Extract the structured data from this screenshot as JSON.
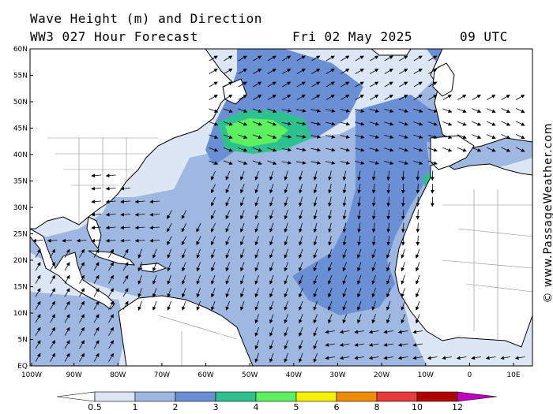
{
  "header": {
    "title": "Wave Height (m) and Direction",
    "model": "WW3 027 Hour Forecast",
    "date": "Fri 02 May 2025",
    "time": "09 UTC"
  },
  "credit": "© www.PassageWeather.com",
  "map": {
    "region": "North Atlantic",
    "lat_labels": [
      "60N",
      "55N",
      "50N",
      "45N",
      "40N",
      "35N",
      "30N",
      "25N",
      "20N",
      "15N",
      "10N",
      "5N",
      "EQ"
    ],
    "lon_labels": [
      "100W",
      "90W",
      "80W",
      "70W",
      "60W",
      "50W",
      "40W",
      "30W",
      "20W",
      "10W",
      "0",
      "10E"
    ],
    "colors": {
      "land": "#ffffff",
      "ocean_lt05": "#dce6f4",
      "wave_05_1": "#c6d6ee",
      "wave_1_2": "#9fb8e2",
      "wave_2_3": "#6b8fd4",
      "wave_3_4": "#2ec08f",
      "wave_4_5": "#5ef060",
      "coast": "#000000",
      "border": "#888888"
    }
  },
  "colorbar": {
    "labels": [
      "0.5",
      "1",
      "2",
      "3",
      "4",
      "5",
      "6",
      "8",
      "10",
      "12"
    ],
    "colors": [
      "#ffffff",
      "#dce6f4",
      "#9fb8e2",
      "#6b8fd4",
      "#2ec08f",
      "#5ef060",
      "#f4f000",
      "#f08c00",
      "#e83a3a",
      "#b00000",
      "#c000c0"
    ]
  }
}
